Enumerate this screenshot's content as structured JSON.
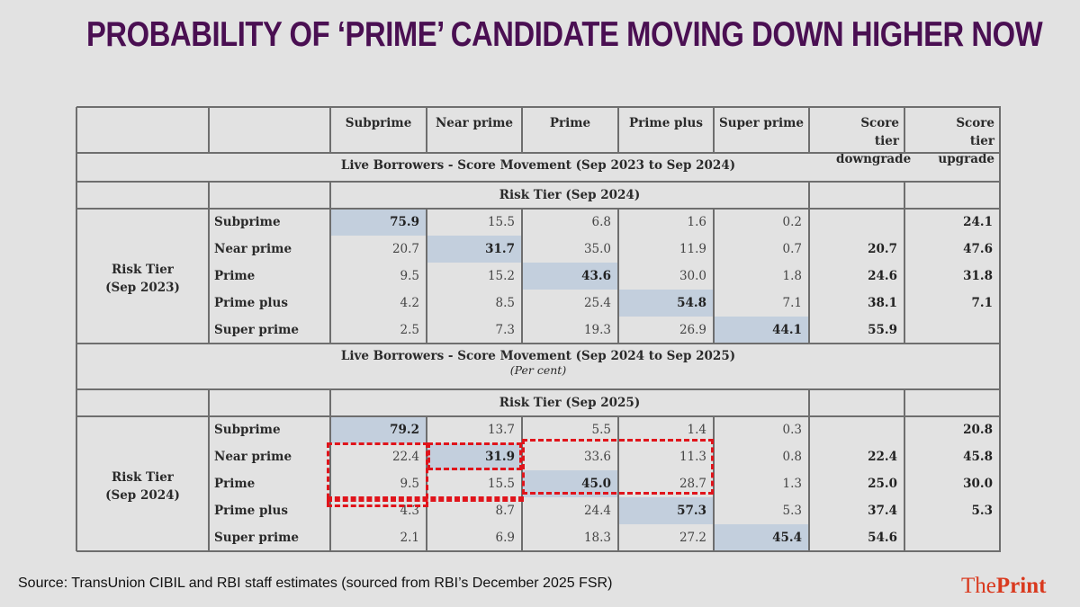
{
  "title": "PROBABILITY OF ‘PRIME’ CANDIDATE MOVING DOWN HIGHER NOW",
  "table": {
    "columns": [
      "Subprime",
      "Near prime",
      "Prime",
      "Prime plus",
      "Super prime",
      "Score tier downgrade",
      "Score tier upgrade"
    ],
    "sections": [
      {
        "heading": "Live Borrowers - Score Movement (Sep 2023 to Sep 2024)",
        "subheading": "",
        "to_tier_label": "Risk Tier (Sep 2024)",
        "from_tier_label": "Risk Tier (Sep 2023)",
        "rows": [
          {
            "label": "Subprime",
            "values": [
              "75.9",
              "15.5",
              "6.8",
              "1.6",
              "0.2"
            ],
            "downgrade": "",
            "upgrade": "24.1"
          },
          {
            "label": "Near prime",
            "values": [
              "20.7",
              "31.7",
              "35.0",
              "11.9",
              "0.7"
            ],
            "downgrade": "20.7",
            "upgrade": "47.6"
          },
          {
            "label": "Prime",
            "values": [
              "9.5",
              "15.2",
              "43.6",
              "30.0",
              "1.8"
            ],
            "downgrade": "24.6",
            "upgrade": "31.8"
          },
          {
            "label": "Prime plus",
            "values": [
              "4.2",
              "8.5",
              "25.4",
              "54.8",
              "7.1"
            ],
            "downgrade": "38.1",
            "upgrade": "7.1"
          },
          {
            "label": "Super prime",
            "values": [
              "2.5",
              "7.3",
              "19.3",
              "26.9",
              "44.1"
            ],
            "downgrade": "55.9",
            "upgrade": ""
          }
        ]
      },
      {
        "heading": "Live Borrowers - Score Movement (Sep 2024 to Sep 2025)",
        "subheading": "(Per cent)",
        "to_tier_label": "Risk Tier (Sep 2025)",
        "from_tier_label": "Risk Tier (Sep 2024)",
        "rows": [
          {
            "label": "Subprime",
            "values": [
              "79.2",
              "13.7",
              "5.5",
              "1.4",
              "0.3"
            ],
            "downgrade": "",
            "upgrade": "20.8"
          },
          {
            "label": "Near prime",
            "values": [
              "22.4",
              "31.9",
              "33.6",
              "11.3",
              "0.8"
            ],
            "downgrade": "22.4",
            "upgrade": "45.8"
          },
          {
            "label": "Prime",
            "values": [
              "9.5",
              "15.5",
              "45.0",
              "28.7",
              "1.3"
            ],
            "downgrade": "25.0",
            "upgrade": "30.0"
          },
          {
            "label": "Prime plus",
            "values": [
              "4.3",
              "8.7",
              "24.4",
              "57.3",
              "5.3"
            ],
            "downgrade": "37.4",
            "upgrade": "5.3"
          },
          {
            "label": "Super prime",
            "values": [
              "2.1",
              "6.9",
              "18.3",
              "27.2",
              "45.4"
            ],
            "downgrade": "54.6",
            "upgrade": ""
          }
        ]
      }
    ]
  },
  "colors": {
    "title": "#4a0f52",
    "highlight": "#c3cfdd",
    "annotation": "#e0141b",
    "logo": "#d9391e"
  },
  "source": "Source:  TransUnion CIBIL and RBI staff estimates (sourced from RBI’s December 2025 FSR)",
  "logo": {
    "part1": "The",
    "part2": "Print"
  }
}
